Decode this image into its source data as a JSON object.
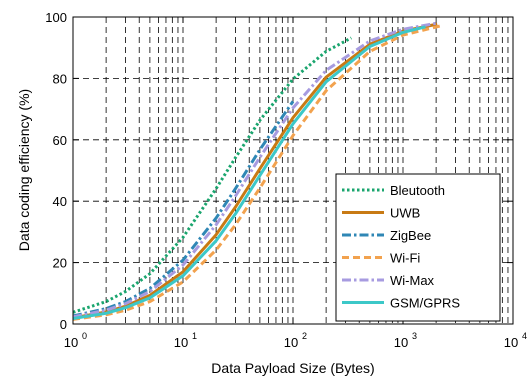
{
  "chart_data": {
    "type": "line",
    "xscale": "log",
    "xlabel": "Data Payload Size (Bytes)",
    "ylabel": "Data coding efficiency (%)",
    "xlim": [
      1,
      10000
    ],
    "ylim": [
      0,
      100
    ],
    "grid": true,
    "legend_position": "bottom-right",
    "x_ticks": [
      {
        "value": 1,
        "base": "10",
        "exp": "0"
      },
      {
        "value": 10,
        "base": "10",
        "exp": "1"
      },
      {
        "value": 100,
        "base": "10",
        "exp": "2"
      },
      {
        "value": 1000,
        "base": "10",
        "exp": "3"
      },
      {
        "value": 10000,
        "base": "10",
        "exp": "4"
      }
    ],
    "y_ticks": [
      "0",
      "20",
      "40",
      "60",
      "80",
      "100"
    ],
    "series": [
      {
        "name": "Bleutooth",
        "color": "#1aa56e",
        "dash": "dotted",
        "x": [
          1,
          2,
          3,
          5,
          10,
          20,
          30,
          50,
          100,
          200,
          339
        ],
        "y": [
          3.8,
          7.3,
          10.6,
          16.4,
          28.2,
          44.1,
          54.2,
          66.4,
          79.8,
          88.8,
          93.2
        ]
      },
      {
        "name": "UWB",
        "color": "#c87a14",
        "dash": "solid",
        "x": [
          1,
          2,
          3,
          5,
          10,
          20,
          30,
          50,
          100,
          200,
          500,
          1000,
          2048
        ],
        "y": [
          2.0,
          3.9,
          5.8,
          9.3,
          17.0,
          29.1,
          38.1,
          50.6,
          67.2,
          80.4,
          91.1,
          95.4,
          97.7
        ]
      },
      {
        "name": "ZigBee",
        "color": "#2f87b5",
        "dash": "dashdot",
        "x": [
          1,
          2,
          3,
          5,
          10,
          20,
          30,
          50,
          100
        ],
        "y": [
          2.6,
          5.0,
          7.3,
          11.6,
          20.8,
          34.5,
          44.1,
          56.8,
          72.5
        ]
      },
      {
        "name": "Wi-Fi",
        "color": "#f2a24e",
        "dash": "dashed",
        "x": [
          1,
          2,
          3,
          5,
          10,
          20,
          30,
          50,
          100,
          200,
          500,
          1000,
          2312
        ],
        "y": [
          1.5,
          3.0,
          4.5,
          7.3,
          13.7,
          24.1,
          32.3,
          44.3,
          61.4,
          76.0,
          88.8,
          94.1,
          97.3
        ]
      },
      {
        "name": "Wi-Max",
        "color": "#a79be0",
        "dash": "dashdot",
        "x": [
          1,
          2,
          3,
          5,
          10,
          20,
          30,
          50,
          100,
          200,
          500,
          1000,
          2048
        ],
        "y": [
          2.3,
          4.5,
          6.6,
          10.6,
          19.2,
          32.3,
          41.7,
          54.3,
          70.4,
          82.6,
          92.2,
          96.0,
          98.0
        ]
      },
      {
        "name": "GSM/GPRS",
        "color": "#3cc8c8",
        "dash": "solid",
        "x": [
          1,
          2,
          3,
          5,
          10,
          20,
          30,
          50,
          100,
          200,
          500,
          1000,
          1600
        ],
        "y": [
          1.8,
          3.5,
          5.3,
          8.5,
          15.7,
          27.1,
          35.9,
          48.4,
          65.2,
          78.9,
          90.4,
          95.0,
          96.8
        ]
      }
    ]
  }
}
